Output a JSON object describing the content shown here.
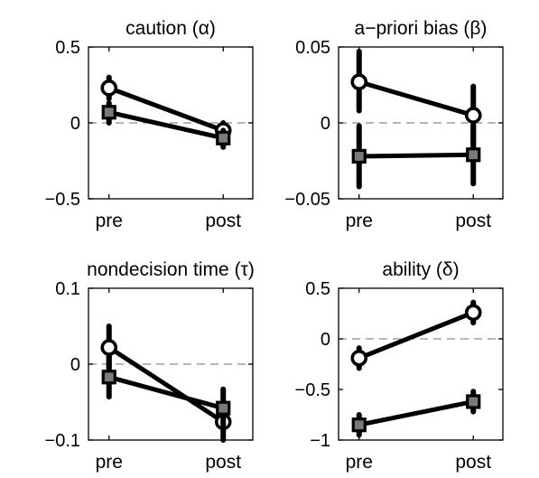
{
  "chart_data": [
    {
      "type": "line",
      "title": "caution (α)",
      "categories": [
        "pre",
        "post"
      ],
      "ylim": [
        -0.5,
        0.5
      ],
      "yticks": [
        -0.5,
        0,
        0.5
      ],
      "ytick_labels": [
        "−0.5",
        "0",
        "0.5"
      ],
      "zero_line": true,
      "series": [
        {
          "marker": "circle",
          "values": [
            0.23,
            -0.05
          ],
          "err_low": [
            0.16,
            -0.1
          ],
          "err_high": [
            0.3,
            0.0
          ]
        },
        {
          "marker": "square",
          "values": [
            0.07,
            -0.1
          ],
          "err_low": [
            0.0,
            -0.16
          ],
          "err_high": [
            0.13,
            -0.05
          ]
        }
      ]
    },
    {
      "type": "line",
      "title": "a−priori bias (β)",
      "categories": [
        "pre",
        "post"
      ],
      "ylim": [
        -0.05,
        0.05
      ],
      "yticks": [
        -0.05,
        0,
        0.05
      ],
      "ytick_labels": [
        "−0.05",
        "0",
        "0.05"
      ],
      "zero_line": true,
      "series": [
        {
          "marker": "circle",
          "values": [
            0.027,
            0.005
          ],
          "err_low": [
            0.008,
            -0.015
          ],
          "err_high": [
            0.047,
            0.024
          ]
        },
        {
          "marker": "square",
          "values": [
            -0.022,
            -0.021
          ],
          "err_low": [
            -0.042,
            -0.04
          ],
          "err_high": [
            -0.002,
            -0.002
          ]
        }
      ]
    },
    {
      "type": "line",
      "title": "nondecision time (τ)",
      "categories": [
        "pre",
        "post"
      ],
      "ylim": [
        -0.1,
        0.1
      ],
      "yticks": [
        -0.1,
        0,
        0.1
      ],
      "ytick_labels": [
        "−0.1",
        "0",
        "0.1"
      ],
      "zero_line": true,
      "series": [
        {
          "marker": "circle",
          "values": [
            0.022,
            -0.076
          ],
          "err_low": [
            -0.005,
            -0.1
          ],
          "err_high": [
            0.05,
            -0.05
          ]
        },
        {
          "marker": "square",
          "values": [
            -0.017,
            -0.058
          ],
          "err_low": [
            -0.043,
            -0.082
          ],
          "err_high": [
            0.01,
            -0.033
          ]
        }
      ]
    },
    {
      "type": "line",
      "title": "ability (δ)",
      "categories": [
        "pre",
        "post"
      ],
      "ylim": [
        -1,
        0.5
      ],
      "yticks": [
        -1,
        -0.5,
        0,
        0.5
      ],
      "ytick_labels": [
        "−1",
        "−0.5",
        "0",
        "0.5"
      ],
      "zero_line": true,
      "series": [
        {
          "marker": "circle",
          "values": [
            -0.19,
            0.26
          ],
          "err_low": [
            -0.29,
            0.16
          ],
          "err_high": [
            -0.09,
            0.36
          ]
        },
        {
          "marker": "square",
          "values": [
            -0.85,
            -0.62
          ],
          "err_low": [
            -0.95,
            -0.72
          ],
          "err_high": [
            -0.75,
            -0.52
          ]
        }
      ]
    }
  ]
}
